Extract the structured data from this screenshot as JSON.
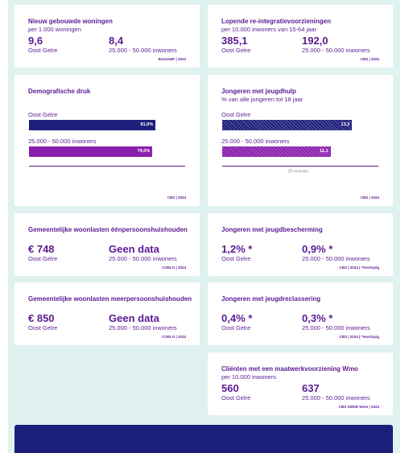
{
  "cards": [
    {
      "title": "Nieuw gebouwde woningen",
      "subtitle": "per 1.000 woningen",
      "stats": [
        {
          "value": "9,6",
          "label": "Oost Gelre"
        },
        {
          "value": "8,4",
          "label": "25.000 - 50.000 inwoners"
        }
      ],
      "source": "BAG/ABF | 2023"
    },
    {
      "title": "Lopende re-integratievoorzieningen",
      "subtitle": "per 10.000 inwoners van 15-64 jaar",
      "stats": [
        {
          "value": "385,1",
          "label": "Oost Gelre"
        },
        {
          "value": "192,0",
          "label": "25.000 - 50.000 inwoners"
        }
      ],
      "source": "CBS | 2022"
    },
    {
      "title": "Demografische druk",
      "xlim": [
        0,
        100
      ],
      "bars": [
        {
          "label": "Oost Gelre",
          "value": 81.0,
          "value_label": "81,0%",
          "color": "#1f1f7d"
        },
        {
          "label": "25.000 - 50.000 inwoners",
          "value": 79.0,
          "value_label": "79,0%",
          "color": "#8a1fae"
        }
      ],
      "source": "CBS | 2024"
    },
    {
      "title": "Jongeren met jeugdhulp",
      "subtitle": "% van alle jongeren tot 18 jaar",
      "xlim": [
        0,
        16
      ],
      "hatched": true,
      "bars": [
        {
          "label": "Oost Gelre",
          "value": 13.3,
          "value_label": "13,3",
          "color": "#1f1f7d"
        },
        {
          "label": "25.000 - 50.000 inwoners",
          "value": 11.1,
          "value_label": "11,1",
          "color": "#8a1fae"
        }
      ],
      "legend": "Voorlopig",
      "source": "CBS | 2024"
    },
    {
      "title": "Gemeentelijke woonlasten éénpersoonshuishouden",
      "stats": [
        {
          "value": "€ 748",
          "label": "Oost Gelre"
        },
        {
          "value": "Geen data",
          "label": "25.000 - 50.000 inwoners"
        }
      ],
      "source": "COELO | 2024"
    },
    {
      "title": "Jongeren met jeugdbescherming",
      "stats": [
        {
          "value": "1,2% *",
          "label": "Oost Gelre"
        },
        {
          "value": "0,9% *",
          "label": "25.000 - 50.000 inwoners"
        }
      ],
      "source": "CBS | 2024 | *Voorlopig"
    },
    {
      "title": "Gemeentelijke woonlasten meerpersoonshuishouden",
      "stats": [
        {
          "value": "€ 850",
          "label": "Oost Gelre"
        },
        {
          "value": "Geen data",
          "label": "25.000 - 50.000 inwoners"
        }
      ],
      "source": "COELO | 2024"
    },
    {
      "title": "Jongeren met jeugdreclassering",
      "stats": [
        {
          "value": "0,4% *",
          "label": "Oost Gelre"
        },
        {
          "value": "0,3% *",
          "label": "25.000 - 50.000 inwoners"
        }
      ],
      "source": "CBS | 2024 | *Voorlopig"
    },
    {
      "title": "Cliënten met een maatwerkvoorziening Wmo",
      "subtitle": "per 10.000 inwoners",
      "stats": [
        {
          "value": "560",
          "label": "Oost Gelre"
        },
        {
          "value": "637",
          "label": "25.000 - 50.000 inwoners"
        }
      ],
      "source": "CBS GMSD Wmo | 2024"
    }
  ]
}
